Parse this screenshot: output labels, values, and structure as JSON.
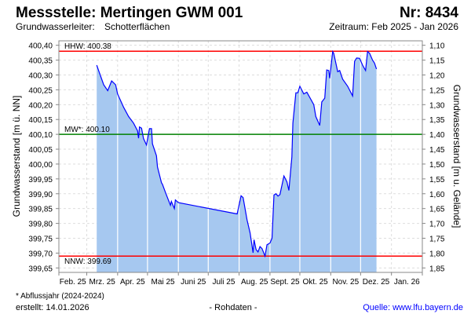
{
  "header": {
    "title": "Messstelle: Mertingen GWM 001",
    "number": "Nr: 8434",
    "aquifer_label": "Grundwasserleiter:",
    "aquifer_value": "Schotterflächen",
    "period": "Zeitraum: Feb 2025 - Jan 2026"
  },
  "footer": {
    "note": "* Abflussjahr (2024-2024)",
    "created": "erstellt:  14.01.2026",
    "data_type": "- Rohdaten -",
    "source": "Quelle: www.lfu.bayern.de"
  },
  "colors": {
    "line": "#0000ff",
    "fill": "#a6c8f0",
    "threshold_high_low": "#ff0000",
    "threshold_mean": "#008000",
    "source_link": "#0000ff"
  },
  "chart_data": {
    "type": "area",
    "ylabel": "Grundwasserstand [m ü. NN]",
    "ylabel_right": "Grundwasserstand [m u. Gelände]",
    "xlim": [
      "2025-02-01",
      "2026-02-01"
    ],
    "ylim": [
      399.635,
      400.415
    ],
    "grid": true,
    "yticks": [
      "400,40",
      "400,35",
      "400,30",
      "400,25",
      "400,20",
      "400,15",
      "400,10",
      "400,05",
      "400,00",
      "399,95",
      "399,90",
      "399,85",
      "399,80",
      "399,75",
      "399,70",
      "399,65"
    ],
    "yticks_right": [
      "1,10",
      "1,15",
      "1,20",
      "1,25",
      "1,30",
      "1,35",
      "1,40",
      "1,45",
      "1,50",
      "1,55",
      "1,60",
      "1,65",
      "1,70",
      "1,75",
      "1,80",
      "1,85"
    ],
    "xticks": [
      "Feb. 25",
      "Mrz. 25",
      "Apr. 25",
      "Mai 25",
      "Juni 25",
      "Juli 25",
      "Aug. 25",
      "Sept. 25",
      "Okt. 25",
      "Nov. 25",
      "Dez. 25",
      "Jan. 26"
    ],
    "thresholds": [
      {
        "label": "HHW: 400.38",
        "value": 400.38,
        "color": "#ff0000"
      },
      {
        "label": "MW*: 400.10",
        "value": 400.1,
        "color": "#008000"
      },
      {
        "label": "NNW: 399.69",
        "value": 399.69,
        "color": "#ff0000"
      }
    ],
    "series": [
      {
        "x": [
          "2025-03-11",
          "2025-03-18",
          "2025-03-22",
          "2025-03-26",
          "2025-03-30",
          "2025-04-01",
          "2025-04-07",
          "2025-04-12",
          "2025-04-17",
          "2025-04-21",
          "2025-04-22",
          "2025-04-23",
          "2025-04-25",
          "2025-04-27",
          "2025-04-30",
          "2025-05-03",
          "2025-05-05",
          "2025-05-06",
          "2025-05-10",
          "2025-05-11",
          "2025-05-15",
          "2025-05-16",
          "2025-05-19",
          "2025-05-24",
          "2025-05-25",
          "2025-05-28",
          "2025-05-29",
          "2025-06-01",
          "2025-07-30",
          "2025-08-03",
          "2025-08-05",
          "2025-08-09",
          "2025-08-12",
          "2025-08-15",
          "2025-08-16",
          "2025-08-18",
          "2025-08-20",
          "2025-08-22",
          "2025-08-24",
          "2025-08-27",
          "2025-08-29",
          "2025-09-01",
          "2025-09-03",
          "2025-09-05",
          "2025-09-07",
          "2025-09-09",
          "2025-09-11",
          "2025-09-15",
          "2025-09-18",
          "2025-09-20",
          "2025-09-23",
          "2025-09-24",
          "2025-09-27",
          "2025-09-29",
          "2025-10-01",
          "2025-10-05",
          "2025-10-08",
          "2025-10-15",
          "2025-10-17",
          "2025-10-21",
          "2025-10-23",
          "2025-10-26",
          "2025-10-28",
          "2025-10-30",
          "2025-10-31",
          "2025-11-03",
          "2025-11-04",
          "2025-11-08",
          "2025-11-10",
          "2025-11-13",
          "2025-11-18",
          "2025-11-23",
          "2025-11-25",
          "2025-11-27",
          "2025-11-30",
          "2025-12-03",
          "2025-12-06",
          "2025-12-08",
          "2025-12-10",
          "2025-12-13",
          "2025-12-15",
          "2025-12-17"
        ],
        "y": [
          400.333,
          400.267,
          400.247,
          400.28,
          400.267,
          400.236,
          400.191,
          400.16,
          400.138,
          400.112,
          400.087,
          400.125,
          400.121,
          400.086,
          400.064,
          400.119,
          400.119,
          400.068,
          400.028,
          399.99,
          399.937,
          399.932,
          399.905,
          399.861,
          399.874,
          399.85,
          399.879,
          399.87,
          399.832,
          399.893,
          399.887,
          399.812,
          399.768,
          399.701,
          399.745,
          399.712,
          399.704,
          399.722,
          399.715,
          399.69,
          399.728,
          399.734,
          399.75,
          399.896,
          399.9,
          399.892,
          399.897,
          399.96,
          399.94,
          399.911,
          400.024,
          400.138,
          400.24,
          400.24,
          400.262,
          400.236,
          400.242,
          400.2,
          400.16,
          400.13,
          400.209,
          400.222,
          400.317,
          400.315,
          400.289,
          400.379,
          400.373,
          400.311,
          400.315,
          400.286,
          400.262,
          400.229,
          400.346,
          400.357,
          400.356,
          400.333,
          400.315,
          400.379,
          400.373,
          400.35,
          400.34,
          400.32
        ]
      }
    ]
  }
}
